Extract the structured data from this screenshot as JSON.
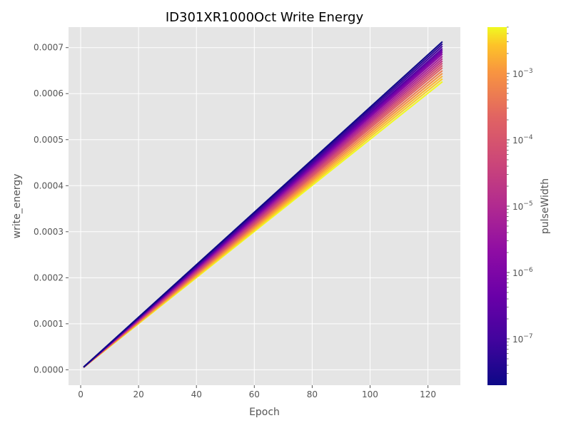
{
  "chart_data": {
    "type": "line",
    "title": "ID301XR1000Oct Write Energy",
    "xlabel": "Epoch",
    "ylabel": "write_energy",
    "xlim": [
      -4.2,
      131.2
    ],
    "ylim": [
      -3.35e-05,
      0.0007445
    ],
    "x_ticks": [
      0,
      20,
      40,
      60,
      80,
      100,
      120
    ],
    "x_tick_labels": [
      "0",
      "20",
      "40",
      "60",
      "80",
      "100",
      "120"
    ],
    "y_ticks": [
      0.0,
      0.0001,
      0.0002,
      0.0003,
      0.0004,
      0.0005,
      0.0006,
      0.0007
    ],
    "y_tick_labels": [
      "0.0000",
      "0.0001",
      "0.0002",
      "0.0003",
      "0.0004",
      "0.0005",
      "0.0006",
      "0.0007"
    ],
    "grid": true,
    "background": "#e5e5e5",
    "colorbar": {
      "label": "pulseWidth",
      "scale": "log",
      "range": [
        2e-08,
        0.005
      ],
      "colormap": "plasma",
      "ticks": [
        1e-07,
        1e-06,
        1e-05,
        0.0001,
        0.001
      ],
      "tick_labels": [
        {
          "base": "10",
          "exp": "−7"
        },
        {
          "base": "10",
          "exp": "−6"
        },
        {
          "base": "10",
          "exp": "−5"
        },
        {
          "base": "10",
          "exp": "−4"
        },
        {
          "base": "10",
          "exp": "−3"
        }
      ],
      "minor_ticks": [
        3e-08,
        4e-08,
        5e-08,
        6e-08,
        7e-08,
        8e-08,
        9e-08,
        2e-07,
        3e-07,
        4e-07,
        5e-07,
        6e-07,
        7e-07,
        8e-07,
        9e-07,
        2e-06,
        3e-06,
        4e-06,
        5e-06,
        6e-06,
        7e-06,
        8e-06,
        9e-06,
        2e-05,
        3e-05,
        4e-05,
        5e-05,
        6e-05,
        7e-05,
        8e-05,
        9e-05,
        0.0002,
        0.0003,
        0.0004,
        0.0005,
        0.0006,
        0.0007,
        0.0008,
        0.0009,
        0.002,
        0.003,
        0.004,
        0.005
      ]
    },
    "series": [
      {
        "pulse_width": 2e-08,
        "x": [
          1,
          125
        ],
        "y": [
          5.8e-06,
          0.000713
        ]
      },
      {
        "pulse_width": 5e-08,
        "x": [
          1,
          125
        ],
        "y": [
          5.8e-06,
          0.000708
        ]
      },
      {
        "pulse_width": 1e-07,
        "x": [
          1,
          125
        ],
        "y": [
          5.7e-06,
          0.000703
        ]
      },
      {
        "pulse_width": 2e-07,
        "x": [
          1,
          125
        ],
        "y": [
          5.7e-06,
          0.000698
        ]
      },
      {
        "pulse_width": 5e-07,
        "x": [
          1,
          125
        ],
        "y": [
          5.7e-06,
          0.000694
        ]
      },
      {
        "pulse_width": 1e-06,
        "x": [
          1,
          125
        ],
        "y": [
          5.6e-06,
          0.00069
        ]
      },
      {
        "pulse_width": 2e-06,
        "x": [
          1,
          125
        ],
        "y": [
          5.6e-06,
          0.000686
        ]
      },
      {
        "pulse_width": 5e-06,
        "x": [
          1,
          125
        ],
        "y": [
          5.6e-06,
          0.000681
        ]
      },
      {
        "pulse_width": 1e-05,
        "x": [
          1,
          125
        ],
        "y": [
          5.5e-06,
          0.000676
        ]
      },
      {
        "pulse_width": 2e-05,
        "x": [
          1,
          125
        ],
        "y": [
          5.5e-06,
          0.000671
        ]
      },
      {
        "pulse_width": 5e-05,
        "x": [
          1,
          125
        ],
        "y": [
          5.4e-06,
          0.000666
        ]
      },
      {
        "pulse_width": 0.0001,
        "x": [
          1,
          125
        ],
        "y": [
          5.4e-06,
          0.000661
        ]
      },
      {
        "pulse_width": 0.0002,
        "x": [
          1,
          125
        ],
        "y": [
          5.3e-06,
          0.000656
        ]
      },
      {
        "pulse_width": 0.0005,
        "x": [
          1,
          125
        ],
        "y": [
          5.3e-06,
          0.00065
        ]
      },
      {
        "pulse_width": 0.001,
        "x": [
          1,
          125
        ],
        "y": [
          5.2e-06,
          0.000644
        ]
      },
      {
        "pulse_width": 0.002,
        "x": [
          1,
          125
        ],
        "y": [
          5.2e-06,
          0.000638
        ]
      },
      {
        "pulse_width": 0.003,
        "x": [
          1,
          125
        ],
        "y": [
          5.1e-06,
          0.000632
        ]
      },
      {
        "pulse_width": 0.005,
        "x": [
          1,
          125
        ],
        "y": [
          5e-06,
          0.000626
        ]
      }
    ]
  }
}
